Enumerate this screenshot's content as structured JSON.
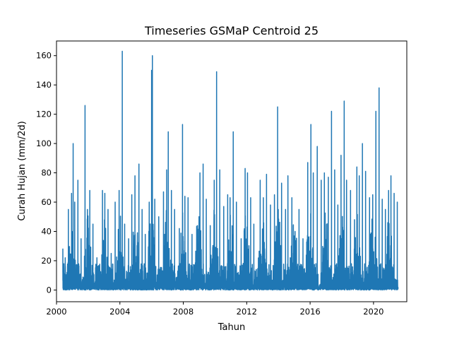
{
  "chart_data": {
    "type": "line",
    "title": "Timeseries GSMaP Centroid 25",
    "xlabel": "Tahun",
    "ylabel": "Curah Hujan (mm/2d)",
    "xlim": [
      2000.0,
      2022.1
    ],
    "ylim": [
      -8,
      170
    ],
    "x_ticks": [
      2000,
      2004,
      2008,
      2012,
      2016,
      2020
    ],
    "x_tick_labels": [
      "2000",
      "2004",
      "2008",
      "2012",
      "2016",
      "2020"
    ],
    "y_ticks": [
      0,
      20,
      40,
      60,
      80,
      100,
      120,
      140,
      160
    ],
    "y_tick_labels": [
      "0",
      "20",
      "40",
      "60",
      "80",
      "100",
      "120",
      "140",
      "160"
    ],
    "grid": false,
    "color": "#1f77b4",
    "series": [
      {
        "x_start": 2000.4,
        "x_end": 2021.55,
        "peaks": [
          [
            2000.4,
            28
          ],
          [
            2000.55,
            22
          ],
          [
            2000.75,
            55
          ],
          [
            2000.95,
            66
          ],
          [
            2001.05,
            100
          ],
          [
            2001.15,
            60
          ],
          [
            2001.35,
            75
          ],
          [
            2001.55,
            35
          ],
          [
            2001.8,
            126
          ],
          [
            2001.95,
            55
          ],
          [
            2002.1,
            68
          ],
          [
            2002.3,
            45
          ],
          [
            2002.55,
            22
          ],
          [
            2002.9,
            68
          ],
          [
            2003.05,
            66
          ],
          [
            2003.25,
            55
          ],
          [
            2003.45,
            25
          ],
          [
            2003.7,
            60
          ],
          [
            2003.95,
            68
          ],
          [
            2004.15,
            163
          ],
          [
            2004.3,
            45
          ],
          [
            2004.55,
            35
          ],
          [
            2004.75,
            65
          ],
          [
            2004.95,
            78
          ],
          [
            2005.2,
            86
          ],
          [
            2005.4,
            55
          ],
          [
            2005.6,
            38
          ],
          [
            2005.85,
            60
          ],
          [
            2006.0,
            150
          ],
          [
            2006.05,
            160
          ],
          [
            2006.2,
            62
          ],
          [
            2006.45,
            50
          ],
          [
            2006.75,
            67
          ],
          [
            2006.95,
            82
          ],
          [
            2007.05,
            108
          ],
          [
            2007.25,
            68
          ],
          [
            2007.45,
            55
          ],
          [
            2007.75,
            42
          ],
          [
            2007.95,
            113
          ],
          [
            2008.1,
            64
          ],
          [
            2008.3,
            63
          ],
          [
            2008.55,
            38
          ],
          [
            2008.85,
            42
          ],
          [
            2009.05,
            80
          ],
          [
            2009.25,
            86
          ],
          [
            2009.45,
            62
          ],
          [
            2009.7,
            44
          ],
          [
            2009.95,
            75
          ],
          [
            2010.1,
            149
          ],
          [
            2010.3,
            82
          ],
          [
            2010.55,
            57
          ],
          [
            2010.8,
            65
          ],
          [
            2010.95,
            63
          ],
          [
            2011.15,
            108
          ],
          [
            2011.35,
            60
          ],
          [
            2011.65,
            35
          ],
          [
            2011.9,
            83
          ],
          [
            2012.05,
            80
          ],
          [
            2012.25,
            63
          ],
          [
            2012.45,
            45
          ],
          [
            2012.85,
            75
          ],
          [
            2013.05,
            63
          ],
          [
            2013.25,
            79
          ],
          [
            2013.5,
            58
          ],
          [
            2013.75,
            65
          ],
          [
            2013.95,
            125
          ],
          [
            2014.2,
            73
          ],
          [
            2014.45,
            55
          ],
          [
            2014.6,
            78
          ],
          [
            2014.85,
            63
          ],
          [
            2015.05,
            40
          ],
          [
            2015.3,
            55
          ],
          [
            2015.55,
            35
          ],
          [
            2015.85,
            87
          ],
          [
            2016.05,
            113
          ],
          [
            2016.2,
            80
          ],
          [
            2016.45,
            98
          ],
          [
            2016.7,
            75
          ],
          [
            2016.9,
            80
          ],
          [
            2017.15,
            77
          ],
          [
            2017.35,
            122
          ],
          [
            2017.55,
            82
          ],
          [
            2017.75,
            58
          ],
          [
            2017.95,
            92
          ],
          [
            2018.15,
            129
          ],
          [
            2018.3,
            75
          ],
          [
            2018.55,
            68
          ],
          [
            2018.8,
            48
          ],
          [
            2018.95,
            84
          ],
          [
            2019.1,
            78
          ],
          [
            2019.3,
            100
          ],
          [
            2019.5,
            81
          ],
          [
            2019.75,
            63
          ],
          [
            2019.95,
            65
          ],
          [
            2020.15,
            122
          ],
          [
            2020.35,
            138
          ],
          [
            2020.55,
            62
          ],
          [
            2020.75,
            55
          ],
          [
            2020.95,
            68
          ],
          [
            2021.1,
            78
          ],
          [
            2021.3,
            66
          ],
          [
            2021.5,
            60
          ]
        ]
      }
    ]
  }
}
